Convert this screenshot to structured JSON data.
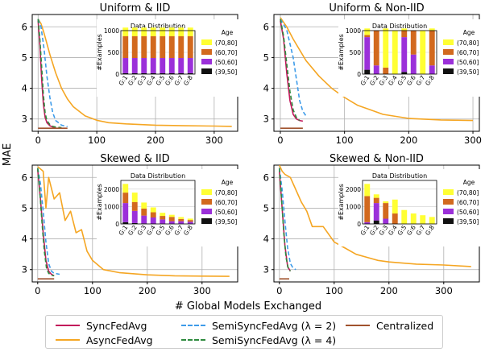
{
  "figure": {
    "ylabel": "MAE",
    "xlabel": "# Global Models Exchanged"
  },
  "colors": {
    "sync": "#c2185b",
    "async": "#f5a623",
    "semi2": "#3d9be9",
    "semi4": "#2e8b3e",
    "central": "#a0522d",
    "age_70_80": "#ffff33",
    "age_60_70": "#d2691e",
    "age_50_60": "#9b30d9",
    "age_39_50": "#111111"
  },
  "legend": {
    "items": [
      {
        "key": "sync",
        "label": "SyncFedAvg",
        "dash": false
      },
      {
        "key": "async",
        "label": "AsyncFedAvg",
        "dash": false
      },
      {
        "key": "semi2",
        "label": "SemiSyncFedAvg (λ = 2)",
        "dash": true
      },
      {
        "key": "semi4",
        "label": "SemiSyncFedAvg (λ = 4)",
        "dash": true
      },
      {
        "key": "central",
        "label": "Centralized",
        "dash": false
      }
    ]
  },
  "inset_common": {
    "title": "Data Distribution",
    "ylabel": "#Examples",
    "legend_title": "Age",
    "legend_labels": [
      "(70,80]",
      "(60,70]",
      "(50,60]",
      "(39,50]"
    ],
    "groups": [
      "G:1",
      "G:2",
      "G:3",
      "G:4",
      "G:5",
      "G:6",
      "G:7",
      "G:8"
    ]
  },
  "chart_data": [
    {
      "type": "line",
      "title": "Uniform & IID",
      "xlim": [
        -10,
        340
      ],
      "ylim": [
        2.6,
        6.4
      ],
      "xticks": [
        0,
        100,
        200,
        300
      ],
      "yticks": [
        3,
        4,
        5,
        6
      ],
      "grid": true,
      "series": [
        {
          "key": "async",
          "x": [
            0,
            5,
            10,
            20,
            30,
            40,
            50,
            60,
            80,
            100,
            120,
            150,
            200,
            250,
            300,
            330
          ],
          "y": [
            6.25,
            6.1,
            5.8,
            5.1,
            4.5,
            4.0,
            3.65,
            3.4,
            3.1,
            2.96,
            2.88,
            2.84,
            2.8,
            2.78,
            2.77,
            2.76
          ]
        },
        {
          "key": "sync",
          "x": [
            0,
            3,
            6,
            9,
            12,
            15,
            20,
            25,
            30
          ],
          "y": [
            6.2,
            5.4,
            4.3,
            3.5,
            3.05,
            2.88,
            2.78,
            2.74,
            2.72
          ]
        },
        {
          "key": "semi2",
          "x": [
            0,
            5,
            10,
            15,
            20,
            25,
            30,
            40,
            50
          ],
          "y": [
            6.25,
            6.0,
            5.3,
            4.4,
            3.7,
            3.2,
            2.95,
            2.8,
            2.75
          ]
        },
        {
          "key": "semi4",
          "x": [
            0,
            3,
            6,
            9,
            12,
            15,
            20,
            25,
            30,
            40
          ],
          "y": [
            6.25,
            5.6,
            4.7,
            3.8,
            3.2,
            2.95,
            2.82,
            2.76,
            2.74,
            2.72
          ]
        },
        {
          "key": "central",
          "x": [
            0,
            50
          ],
          "y": [
            2.7,
            2.7
          ]
        }
      ],
      "inset": {
        "ymax": 1000,
        "yticks": [
          0,
          500,
          1000
        ],
        "stacks": [
          [
            20,
            350,
            500,
            200
          ],
          [
            20,
            350,
            500,
            200
          ],
          [
            20,
            350,
            500,
            200
          ],
          [
            20,
            350,
            500,
            200
          ],
          [
            20,
            350,
            500,
            200
          ],
          [
            20,
            350,
            500,
            200
          ],
          [
            20,
            350,
            500,
            200
          ],
          [
            20,
            350,
            500,
            200
          ]
        ]
      }
    },
    {
      "type": "line",
      "title": "Uniform & Non-IID",
      "xlim": [
        -10,
        310
      ],
      "ylim": [
        2.6,
        6.4
      ],
      "xticks": [
        0,
        100,
        200,
        300
      ],
      "yticks": [
        3,
        4,
        5,
        6
      ],
      "grid": true,
      "series": [
        {
          "key": "async",
          "x": [
            0,
            10,
            20,
            40,
            60,
            80,
            100,
            120,
            140,
            160,
            200,
            250,
            300
          ],
          "y": [
            6.3,
            6.0,
            5.6,
            4.9,
            4.4,
            4.0,
            3.7,
            3.45,
            3.3,
            3.15,
            3.02,
            2.97,
            2.95
          ]
        },
        {
          "key": "sync",
          "x": [
            0,
            5,
            10,
            15,
            20,
            25,
            30,
            35
          ],
          "y": [
            6.2,
            5.6,
            4.5,
            3.6,
            3.15,
            3.0,
            2.95,
            2.93
          ]
        },
        {
          "key": "semi2",
          "x": [
            0,
            10,
            20,
            25,
            30,
            35,
            40
          ],
          "y": [
            6.25,
            5.9,
            5.0,
            4.3,
            3.6,
            3.25,
            3.1
          ]
        },
        {
          "key": "semi4",
          "x": [
            0,
            5,
            10,
            15,
            20,
            25,
            30
          ],
          "y": [
            6.25,
            5.7,
            4.8,
            3.9,
            3.3,
            3.05,
            2.95
          ]
        },
        {
          "key": "central",
          "x": [
            0,
            35
          ],
          "y": [
            2.7,
            2.7
          ]
        }
      ],
      "inset": {
        "ymax": 1000,
        "yticks": [
          0,
          500,
          1000
        ],
        "stacks": [
          [
            100,
            750,
            50,
            150
          ],
          [
            0,
            200,
            800,
            0
          ],
          [
            0,
            0,
            150,
            900
          ],
          [
            0,
            0,
            0,
            1000
          ],
          [
            50,
            800,
            150,
            50
          ],
          [
            0,
            450,
            550,
            0
          ],
          [
            0,
            0,
            0,
            1000
          ],
          [
            0,
            200,
            800,
            50
          ]
        ]
      }
    },
    {
      "type": "line",
      "title": "Skewed & IID",
      "xlim": [
        -10,
        365
      ],
      "ylim": [
        2.6,
        6.4
      ],
      "xticks": [
        0,
        100,
        200,
        300
      ],
      "yticks": [
        3,
        4,
        5,
        6
      ],
      "grid": true,
      "series": [
        {
          "key": "async",
          "x": [
            0,
            10,
            15,
            20,
            30,
            40,
            50,
            60,
            70,
            80,
            90,
            100,
            120,
            150,
            200,
            250,
            300,
            350
          ],
          "y": [
            6.35,
            6.2,
            5.0,
            6.0,
            5.3,
            5.5,
            4.6,
            4.9,
            4.2,
            4.3,
            3.6,
            3.3,
            3.0,
            2.9,
            2.83,
            2.8,
            2.79,
            2.78
          ]
        },
        {
          "key": "sync",
          "x": [
            0,
            5,
            10,
            15,
            20,
            25,
            30
          ],
          "y": [
            6.25,
            5.3,
            4.2,
            3.3,
            2.95,
            2.85,
            2.8
          ]
        },
        {
          "key": "semi2",
          "x": [
            0,
            5,
            10,
            15,
            20,
            25,
            30,
            40
          ],
          "y": [
            6.3,
            5.8,
            4.9,
            3.9,
            3.2,
            2.95,
            2.88,
            2.85
          ]
        },
        {
          "key": "semi4",
          "x": [
            0,
            4,
            8,
            12,
            16,
            20,
            25,
            30
          ],
          "y": [
            6.3,
            5.5,
            4.5,
            3.6,
            3.05,
            2.88,
            2.82,
            2.8
          ]
        },
        {
          "key": "central",
          "x": [
            0,
            30
          ],
          "y": [
            2.7,
            2.7
          ]
        }
      ],
      "inset": {
        "ymax": 2500,
        "yticks": [
          0,
          1000,
          2000
        ],
        "stacks": [
          [
            100,
            1100,
            600,
            500
          ],
          [
            50,
            700,
            500,
            550
          ],
          [
            30,
            450,
            400,
            350
          ],
          [
            20,
            350,
            300,
            280
          ],
          [
            10,
            250,
            200,
            180
          ],
          [
            5,
            150,
            250,
            120
          ],
          [
            5,
            150,
            130,
            110
          ],
          [
            5,
            120,
            100,
            80
          ]
        ]
      }
    },
    {
      "type": "line",
      "title": "Skewed & Non-IID",
      "xlim": [
        -10,
        365
      ],
      "ylim": [
        2.6,
        6.4
      ],
      "xticks": [
        0,
        100,
        200,
        300
      ],
      "yticks": [
        3,
        4,
        5,
        6
      ],
      "grid": true,
      "series": [
        {
          "key": "async",
          "x": [
            0,
            5,
            10,
            20,
            30,
            40,
            50,
            60,
            80,
            100,
            120,
            140,
            160,
            180,
            200,
            250,
            300,
            350
          ],
          "y": [
            6.4,
            6.2,
            6.1,
            6.0,
            5.6,
            5.2,
            4.9,
            4.4,
            4.4,
            3.9,
            3.7,
            3.5,
            3.4,
            3.3,
            3.25,
            3.18,
            3.15,
            3.1
          ]
        },
        {
          "key": "sync",
          "x": [
            0,
            5,
            10,
            15,
            20
          ],
          "y": [
            6.2,
            5.0,
            3.8,
            3.1,
            2.95
          ]
        },
        {
          "key": "semi2",
          "x": [
            0,
            5,
            10,
            15,
            20,
            25,
            30
          ],
          "y": [
            6.3,
            5.6,
            4.6,
            3.7,
            3.2,
            3.05,
            3.0
          ]
        },
        {
          "key": "semi4",
          "x": [
            0,
            4,
            8,
            12,
            16,
            20
          ],
          "y": [
            6.3,
            5.3,
            4.2,
            3.4,
            3.05,
            2.95
          ]
        },
        {
          "key": "central",
          "x": [
            0,
            18
          ],
          "y": [
            2.7,
            2.7
          ]
        }
      ],
      "inset": {
        "ymax": 2500,
        "yticks": [
          0,
          1000,
          2000
        ],
        "stacks": [
          [
            0,
            100,
            1500,
            700
          ],
          [
            200,
            1000,
            300,
            200
          ],
          [
            0,
            300,
            900,
            100
          ],
          [
            0,
            0,
            600,
            800
          ],
          [
            0,
            0,
            0,
            800
          ],
          [
            0,
            0,
            0,
            600
          ],
          [
            0,
            0,
            0,
            500
          ],
          [
            0,
            0,
            0,
            400
          ]
        ]
      }
    }
  ]
}
